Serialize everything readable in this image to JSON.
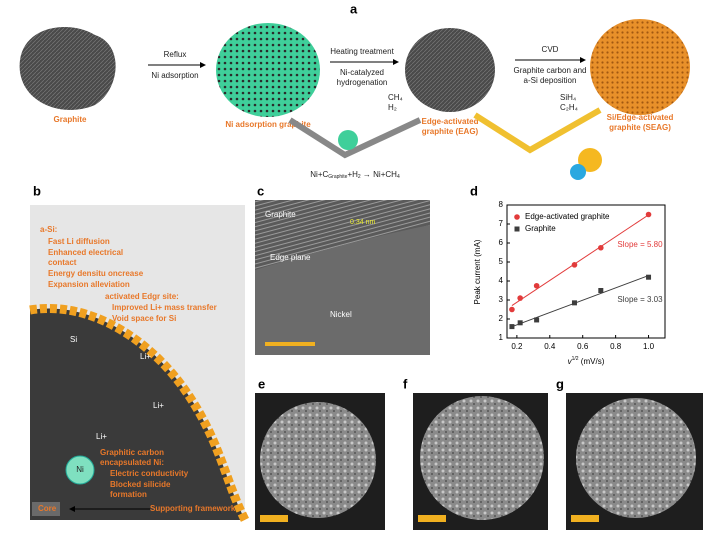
{
  "panels": {
    "a": {
      "label": "a",
      "graphite": "Graphite",
      "step1_top": "Reflux",
      "step1_bottom": "Ni adsorption",
      "ni_graphite": "Ni adsorption graphite",
      "step2_top": "Heating treatment",
      "step2_bottom": [
        "Ni-catalyzed",
        "hydrogenation"
      ],
      "gas1": [
        "CH₄",
        "H₂"
      ],
      "eag": [
        "Edge-activated",
        "graphite (EAG)"
      ],
      "step3_top": "CVD",
      "step3_bottom": [
        "Graphite carbon and",
        "a-Si deposition"
      ],
      "gas2": [
        "SiH₄",
        "C₂H₄"
      ],
      "seag": [
        "Si/Edge-activated",
        "graphite (SEAG)"
      ],
      "equation": {
        "left": "Ni+C",
        "sub": "Graphite",
        "mid": "+H",
        "sub2": "2",
        "right": " → Ni+CH",
        "sub3": "4"
      }
    },
    "b": {
      "label": "b",
      "asi_title": "a-Si:",
      "asi_items": [
        "Fast Li diffusion",
        "Enhanced electrical",
        "contact",
        "Energy densitu oncrease",
        "Expansion alleviation"
      ],
      "edge_title": "activated Edgr site:",
      "edge_items": [
        "Improved Li+ mass transfer",
        "Void space for Si"
      ],
      "si": "Si",
      "li": [
        "Li+",
        "Li+",
        "Li+"
      ],
      "ni": "Ni",
      "ni_title": [
        "Graphitic carbon",
        "encapsulated Ni:"
      ],
      "ni_items": [
        "Electric conductivity",
        "Blocked silicide",
        "formation"
      ],
      "core": "Core",
      "framework": "Supporting framework"
    },
    "c": {
      "label": "c",
      "graphite": "Graphite",
      "edge": "Edge plane",
      "spacing": "0.34 nm",
      "nickel": "Nickel"
    },
    "e": {
      "label": "e"
    },
    "f": {
      "label": "f"
    },
    "g": {
      "label": "g"
    }
  },
  "chart_data": {
    "type": "scatter",
    "label": "d",
    "y_label": "Peak current (mA)",
    "x_label": "v",
    "x_label_sup": "1/2",
    "x_label_unit": " (mV/s)",
    "xlim": [
      0.14,
      1.1
    ],
    "ylim": [
      1,
      8
    ],
    "xticks": [
      0.2,
      0.4,
      0.6,
      0.8,
      {
        "value": 1,
        "label": "1.0"
      }
    ],
    "yticks": [
      1,
      2,
      3,
      4,
      5,
      6,
      7,
      8
    ],
    "x": [
      0.17,
      0.22,
      0.32,
      0.55,
      0.71,
      1.0
    ],
    "series": [
      {
        "name": "Edge-activated graphite",
        "color": "#e23b3b",
        "marker": "circle",
        "values": [
          2.5,
          3.1,
          3.75,
          4.85,
          5.75,
          7.5
        ]
      },
      {
        "name": "Graphite",
        "color": "#3d3d3d",
        "marker": "square",
        "values": [
          1.6,
          1.8,
          1.95,
          2.85,
          3.5,
          4.2
        ]
      }
    ],
    "annotations": [
      "Slope = 5.80",
      "Slope = 3.03"
    ],
    "legend": "upper left"
  }
}
